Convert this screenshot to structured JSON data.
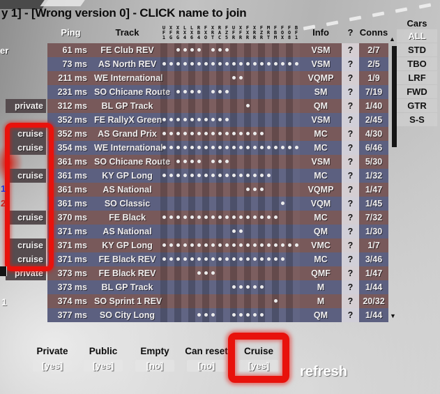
{
  "title": "y 1] - [Wrong version 0]  - CLICK name to join",
  "header": {
    "ping": "Ping",
    "track": "Track",
    "info": "Info",
    "question": "?",
    "conns": "Conns"
  },
  "car_columns": [
    "UF1",
    "XFG",
    "XRG",
    "LX4",
    "LX6",
    "RB4",
    "FXO",
    "XRT",
    "RAC",
    "FZ5",
    "UFR",
    "XFR",
    "FXR",
    "XRR",
    "FZR",
    "MRT",
    "FBM",
    "FOX",
    "FO8",
    "BF1"
  ],
  "rows": [
    {
      "label": "",
      "ping": "61 ms",
      "track": "FE Club REV",
      "cars": [
        3,
        4,
        5,
        6,
        8,
        9,
        10
      ],
      "info": "VSM",
      "question": "?",
      "conns": "2/7"
    },
    {
      "label": "",
      "ping": "73 ms",
      "track": "AS North REV",
      "cars": [
        1,
        2,
        3,
        4,
        5,
        6,
        7,
        8,
        9,
        10,
        11,
        12,
        13,
        14,
        15,
        16,
        17,
        18,
        19,
        20
      ],
      "info": "VSM",
      "question": "?",
      "conns": "2/5"
    },
    {
      "label": "",
      "ping": "211 ms",
      "track": "WE International",
      "cars": [
        11,
        12
      ],
      "info": "VQMP",
      "question": "?",
      "conns": "1/9"
    },
    {
      "label": "",
      "ping": "231 ms",
      "track": "SO Chicane Route",
      "cars": [
        3,
        4,
        5,
        6,
        8,
        9,
        10
      ],
      "info": "SM",
      "question": "?",
      "conns": "7/19"
    },
    {
      "label": "private",
      "ping": "312 ms",
      "track": "BL GP Track",
      "cars": [
        13
      ],
      "info": "QM",
      "question": "?",
      "conns": "1/40"
    },
    {
      "label": "",
      "ping": "352 ms",
      "track": "FE RallyX Green",
      "cars": [
        1,
        2,
        3,
        4,
        5,
        6,
        7,
        8,
        9,
        10
      ],
      "info": "VSM",
      "question": "?",
      "conns": "2/45"
    },
    {
      "label": "cruise",
      "ping": "352 ms",
      "track": "AS Grand Prix",
      "cars": [
        1,
        2,
        3,
        4,
        5,
        6,
        7,
        8,
        9,
        10,
        11,
        12,
        13,
        14,
        15
      ],
      "info": "MC",
      "question": "?",
      "conns": "4/30"
    },
    {
      "label": "cruise",
      "ping": "354 ms",
      "track": "WE International",
      "cars": [
        1,
        2,
        3,
        4,
        5,
        6,
        7,
        8,
        9,
        10,
        11,
        12,
        13,
        14,
        15,
        16,
        17,
        18,
        19,
        20
      ],
      "info": "MC",
      "question": "?",
      "conns": "6/46"
    },
    {
      "label": "",
      "ping": "361 ms",
      "track": "SO Chicane Route",
      "cars": [
        3,
        4,
        5,
        6,
        8,
        9,
        10
      ],
      "info": "VSM",
      "question": "?",
      "conns": "5/30"
    },
    {
      "label": "cruise",
      "ping": "361 ms",
      "track": "KY GP Long",
      "cars": [
        1,
        2,
        3,
        4,
        5,
        6,
        7,
        8,
        9,
        10,
        11,
        12,
        13,
        14,
        15,
        16
      ],
      "info": "MC",
      "question": "?",
      "conns": "1/32"
    },
    {
      "label": "",
      "ping": "361 ms",
      "track": "AS National",
      "cars": [
        13,
        14,
        15
      ],
      "info": "VQMP",
      "question": "?",
      "conns": "1/47"
    },
    {
      "label": "",
      "ping": "361 ms",
      "track": "SO Classic",
      "cars": [
        18
      ],
      "info": "VQM",
      "question": "?",
      "conns": "1/45"
    },
    {
      "label": "cruise",
      "ping": "370 ms",
      "track": "FE Black",
      "cars": [
        1,
        2,
        3,
        4,
        5,
        6,
        7,
        8,
        9,
        10,
        11,
        12,
        13,
        14,
        15,
        16,
        17
      ],
      "info": "MC",
      "question": "?",
      "conns": "7/32"
    },
    {
      "label": "",
      "ping": "371 ms",
      "track": "AS National",
      "cars": [
        11,
        12
      ],
      "info": "QM",
      "question": "?",
      "conns": "1/30"
    },
    {
      "label": "cruise",
      "ping": "371 ms",
      "track": "KY GP Long",
      "cars": [
        1,
        2,
        3,
        4,
        5,
        6,
        7,
        8,
        9,
        10,
        11,
        12,
        13,
        14,
        15,
        16,
        17,
        18,
        19,
        20
      ],
      "info": "VMC",
      "question": "?",
      "conns": "1/7"
    },
    {
      "label": "cruise",
      "ping": "371 ms",
      "track": "FE Black REV",
      "cars": [
        1,
        2,
        3,
        4,
        5,
        6,
        7,
        8,
        9,
        10,
        11,
        12,
        13,
        14,
        15,
        16,
        17,
        18
      ],
      "info": "MC",
      "question": "?",
      "conns": "3/46"
    },
    {
      "label": "private",
      "ping": "373 ms",
      "track": "FE Black REV",
      "cars": [
        6,
        7,
        8
      ],
      "info": "QMF",
      "question": "?",
      "conns": "1/47"
    },
    {
      "label": "",
      "ping": "373 ms",
      "track": "BL GP Track",
      "cars": [
        11,
        12,
        13,
        14,
        15
      ],
      "info": "M",
      "question": "?",
      "conns": "1/44"
    },
    {
      "label": "",
      "ping": "374 ms",
      "track": "SO Sprint 1 REV",
      "cars": [
        17
      ],
      "info": "M",
      "question": "?",
      "conns": "20/32"
    },
    {
      "label": "",
      "ping": "377 ms",
      "track": "SO City Long",
      "cars": [
        6,
        7,
        8,
        11,
        12,
        13,
        14,
        15
      ],
      "info": "QM",
      "question": "?",
      "conns": "1/44"
    }
  ],
  "sidebar": {
    "title": "Cars",
    "selected": "ALL",
    "classes": [
      "ALL",
      "STD",
      "TBO",
      "LRF",
      "FWD",
      "GTR",
      "S-S"
    ]
  },
  "filters": [
    {
      "label": "Private",
      "value": "[yes]",
      "highlighted": false
    },
    {
      "label": "Public",
      "value": "[yes]",
      "highlighted": false
    },
    {
      "label": "Empty",
      "value": "[no]",
      "highlighted": false
    },
    {
      "label": "Can reset",
      "value": "[no]",
      "highlighted": false
    },
    {
      "label": "Cruise",
      "value": "[yes]",
      "highlighted": true
    }
  ],
  "refresh_label": "refresh",
  "icons": {
    "scroll_up": "▲",
    "scroll_down": "▼"
  },
  "artifacts": {
    "clipped_name": "er",
    "blue_num": "1",
    "red_num": "2",
    "white_num": "1"
  },
  "colors": {
    "row_red": "#78595a",
    "row_blue": "#5c6080",
    "dot": "#ececec",
    "label_bar": "#564c4f",
    "annotation_red": "#e8120c"
  }
}
